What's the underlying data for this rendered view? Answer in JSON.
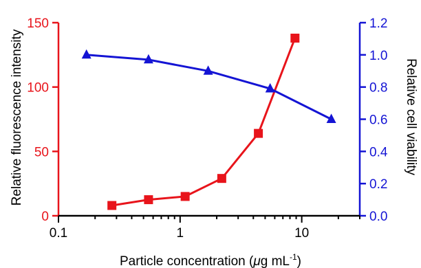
{
  "chart_data": {
    "type": "line",
    "xlabel": "Particle concentration (",
    "xlabel_mu": "μ",
    "xlabel_tail": "g mL",
    "xlabel_sup": "-1",
    "xlabel_close": ")",
    "x_scale": "log",
    "xlim": [
      0.1,
      30
    ],
    "x_ticks": [
      0.1,
      1,
      10
    ],
    "x_tick_labels": [
      "0.1",
      "1",
      "10"
    ],
    "y_left": {
      "label": "Relative fluorescence intensity",
      "ylim": [
        0,
        150
      ],
      "ticks": [
        0,
        50,
        100,
        150
      ],
      "tick_labels": [
        "0",
        "50",
        "100",
        "150"
      ],
      "color": "#e8141b"
    },
    "y_right": {
      "label": "Relative cell viability",
      "ylim": [
        0,
        1.2
      ],
      "ticks": [
        0,
        0.2,
        0.4,
        0.6,
        0.8,
        1.0,
        1.2
      ],
      "tick_labels": [
        "0.0",
        "0.2",
        "0.4",
        "0.6",
        "0.8",
        "1.0",
        "1.2"
      ],
      "color": "#1414d4"
    },
    "series": [
      {
        "axis": "left",
        "marker": "square",
        "color": "#e8141b",
        "x": [
          0.275,
          0.55,
          1.1,
          2.2,
          4.4,
          8.8
        ],
        "y": [
          8,
          12.5,
          15,
          29,
          64,
          138
        ]
      },
      {
        "axis": "right",
        "marker": "triangle",
        "color": "#1414d4",
        "x": [
          0.17,
          0.55,
          1.7,
          5.5,
          17.5
        ],
        "y": [
          1.0,
          0.97,
          0.9,
          0.79,
          0.6
        ]
      }
    ],
    "grid": false,
    "legend": "none"
  }
}
